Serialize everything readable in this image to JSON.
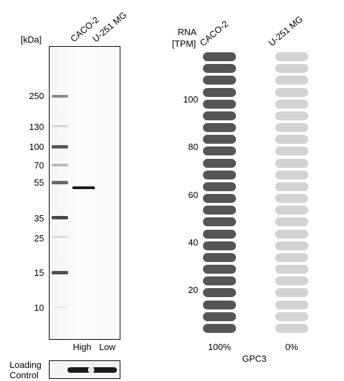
{
  "western_blot": {
    "unit_label": "[kDa]",
    "lanes": [
      "CACO-2",
      "U-251 MG"
    ],
    "markers": [
      "250",
      "130",
      "100",
      "70",
      "55",
      "35",
      "25",
      "15",
      "10"
    ],
    "levels": [
      "High",
      "Low"
    ],
    "band_color": "#1c1c1c"
  },
  "loading_control": {
    "label_line1": "Loading",
    "label_line2": "Control"
  },
  "rna": {
    "title_line1": "RNA",
    "title_line2": "[TPM]",
    "samples": [
      "CACO-2",
      "U-251 MG"
    ],
    "y_ticks": [
      "100",
      "80",
      "60",
      "40",
      "20"
    ],
    "percentages": [
      "100%",
      "0%"
    ],
    "gene": "GPC3",
    "high_color": "#555555",
    "low_color": "#d3d3d3"
  },
  "chart_data": {
    "type": "bar",
    "categories": [
      "CACO-2",
      "U-251 MG"
    ],
    "values": [
      100,
      0
    ],
    "y_ticks": [
      20,
      40,
      60,
      80,
      100
    ],
    "ylabel": "RNA [TPM]",
    "xlabel": "GPC3"
  }
}
